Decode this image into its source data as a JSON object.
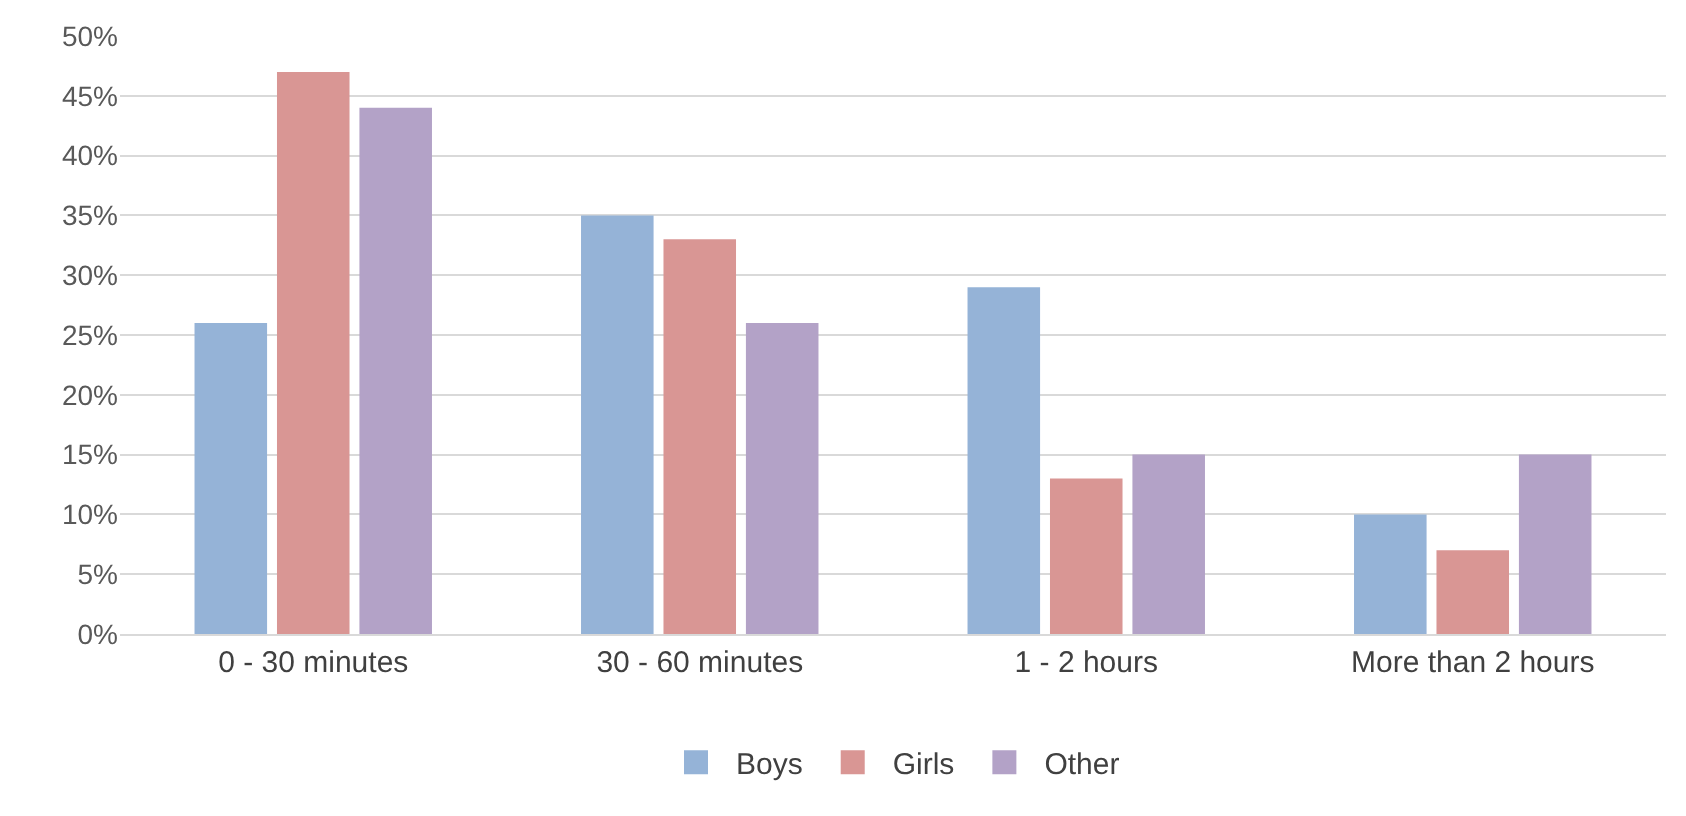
{
  "chart_data": {
    "type": "bar",
    "categories": [
      "0 - 30 minutes",
      "30 - 60 minutes",
      "1 - 2 hours",
      "More than 2 hours"
    ],
    "series": [
      {
        "name": "Boys",
        "color": "#95b3d7",
        "values": [
          26,
          35,
          29,
          10
        ]
      },
      {
        "name": "Girls",
        "color": "#d99694",
        "values": [
          47,
          33,
          13,
          7
        ]
      },
      {
        "name": "Other",
        "color": "#b3a2c7",
        "values": [
          44,
          26,
          15,
          15
        ]
      }
    ],
    "ylim": [
      0,
      50
    ],
    "yticks": [
      {
        "value": 0,
        "label": "0%"
      },
      {
        "value": 5,
        "label": "5%"
      },
      {
        "value": 10,
        "label": "10%"
      },
      {
        "value": 15,
        "label": "15%"
      },
      {
        "value": 20,
        "label": "20%"
      },
      {
        "value": 25,
        "label": "25%"
      },
      {
        "value": 30,
        "label": "30%"
      },
      {
        "value": 35,
        "label": "35%"
      },
      {
        "value": 40,
        "label": "40%"
      },
      {
        "value": 45,
        "label": "45%"
      },
      {
        "value": 50,
        "label": "50%"
      }
    ],
    "grid": "y",
    "legend": "bottom"
  }
}
